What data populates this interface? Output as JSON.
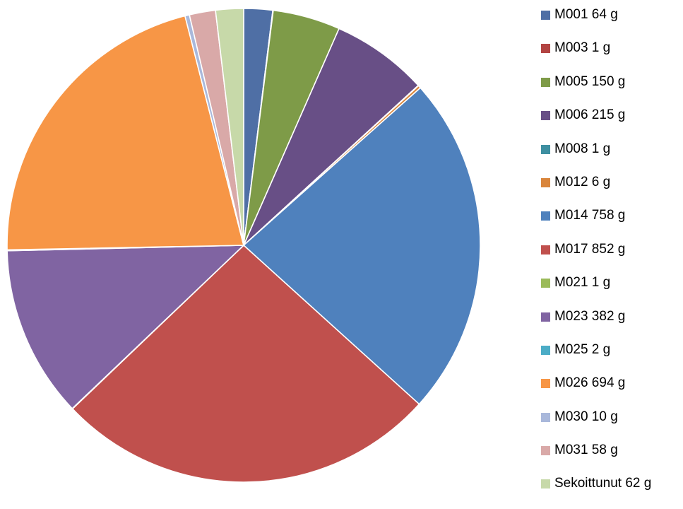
{
  "chart_data": {
    "type": "pie",
    "title": "",
    "start_angle": "top",
    "direction": "clockwise",
    "legend_position": "right",
    "slices": [
      {
        "label": "M001 64 g",
        "category": "M001",
        "value": 64,
        "color": "#4F6FA5"
      },
      {
        "label": "M003 1 g",
        "category": "M003",
        "value": 1,
        "color": "#B24442"
      },
      {
        "label": "M005 150 g",
        "category": "M005",
        "value": 150,
        "color": "#7E9B48"
      },
      {
        "label": "M006 215 g",
        "category": "M006",
        "value": 215,
        "color": "#684F86"
      },
      {
        "label": "M008 1 g",
        "category": "M008",
        "value": 1,
        "color": "#3E8FA1"
      },
      {
        "label": "M012 6 g",
        "category": "M012",
        "value": 6,
        "color": "#D9853B"
      },
      {
        "label": "M014 758 g",
        "category": "M014",
        "value": 758,
        "color": "#4F81BD"
      },
      {
        "label": "M017 852 g",
        "category": "M017",
        "value": 852,
        "color": "#C0504D"
      },
      {
        "label": "M021 1 g",
        "category": "M021",
        "value": 1,
        "color": "#9BBB59"
      },
      {
        "label": "M023 382 g",
        "category": "M023",
        "value": 382,
        "color": "#8064A2"
      },
      {
        "label": "M025 2 g",
        "category": "M025",
        "value": 2,
        "color": "#4BACC6"
      },
      {
        "label": "M026 694 g",
        "category": "M026",
        "value": 694,
        "color": "#F79646"
      },
      {
        "label": "M030 10 g",
        "category": "M030",
        "value": 10,
        "color": "#A9B8DB"
      },
      {
        "label": "M031 58 g",
        "category": "M031",
        "value": 58,
        "color": "#D9A9A8"
      },
      {
        "label": "Sekoittunut 62 g",
        "category": "Sekoittunut",
        "value": 62,
        "color": "#C7D9A9"
      }
    ]
  }
}
